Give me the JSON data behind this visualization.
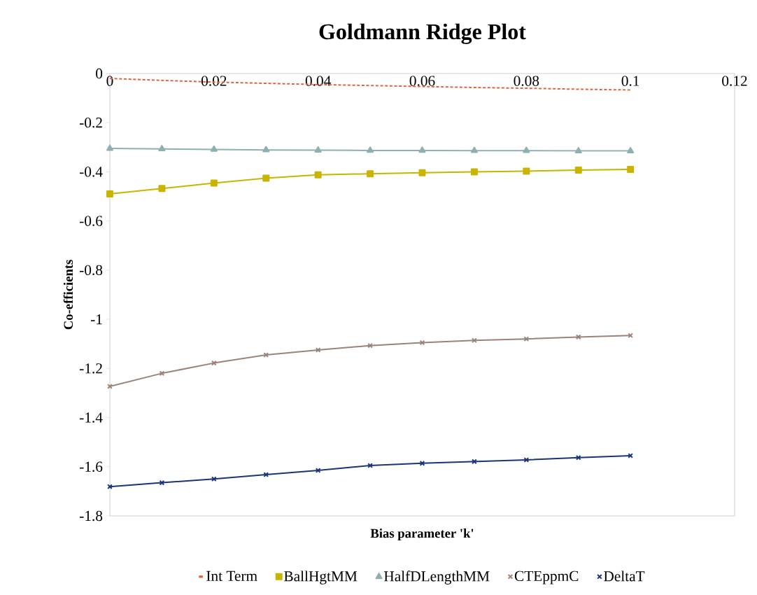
{
  "chart_data": {
    "type": "line",
    "title": "Goldmann Ridge Plot",
    "xlabel": "Bias parameter 'k'",
    "ylabel": "Co-efficients",
    "x": [
      0,
      0.01,
      0.02,
      0.03,
      0.04,
      0.05,
      0.06,
      0.07,
      0.08,
      0.09,
      0.1
    ],
    "xlim": [
      0,
      0.12
    ],
    "xticks": [
      0,
      0.02,
      0.04,
      0.06,
      0.08,
      0.1,
      0.12
    ],
    "ylim": [
      -1.8,
      0
    ],
    "yticks": [
      -1.8,
      -1.6,
      -1.4,
      -1.2,
      -1,
      -0.8,
      -0.6,
      -0.4,
      -0.2,
      0
    ],
    "grid": false,
    "legend": "bottom",
    "series": [
      {
        "name": "Int Term",
        "color": "#e2643c",
        "marker": "none",
        "line_style": "dashed",
        "values": [
          -0.02,
          -0.028,
          -0.035,
          -0.04,
          -0.045,
          -0.049,
          -0.053,
          -0.057,
          -0.06,
          -0.064,
          -0.067
        ]
      },
      {
        "name": "BallHgtMM",
        "color": "#c9b400",
        "marker": "square",
        "line_style": "solid",
        "values": [
          -0.49,
          -0.468,
          -0.446,
          -0.426,
          -0.412,
          -0.408,
          -0.404,
          -0.4,
          -0.397,
          -0.393,
          -0.39
        ]
      },
      {
        "name": "HalfDLengthMM",
        "color": "#8fb0b0",
        "marker": "triangle",
        "line_style": "solid",
        "values": [
          -0.305,
          -0.307,
          -0.309,
          -0.311,
          -0.312,
          -0.313,
          -0.313,
          -0.314,
          -0.314,
          -0.315,
          -0.315
        ]
      },
      {
        "name": "CTEppmC",
        "color": "#9a8478",
        "marker": "cross",
        "line_style": "solid",
        "values": [
          -1.273,
          -1.22,
          -1.178,
          -1.145,
          -1.125,
          -1.107,
          -1.095,
          -1.086,
          -1.08,
          -1.072,
          -1.066
        ]
      },
      {
        "name": "DeltaT",
        "color": "#1b3577",
        "marker": "cross",
        "line_style": "solid",
        "values": [
          -1.681,
          -1.665,
          -1.65,
          -1.632,
          -1.615,
          -1.595,
          -1.586,
          -1.579,
          -1.572,
          -1.563,
          -1.555
        ]
      }
    ]
  }
}
